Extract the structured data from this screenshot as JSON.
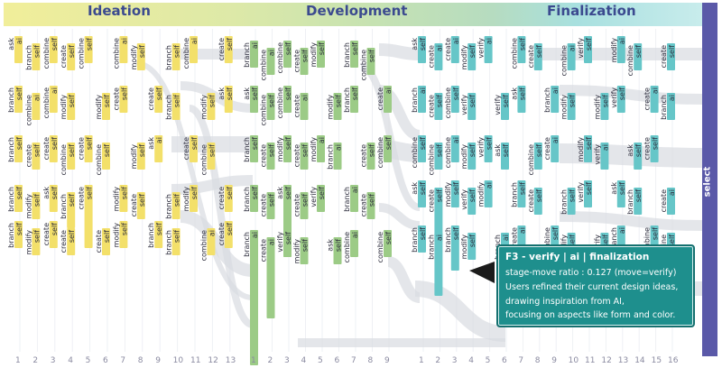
{
  "stages": [
    {
      "key": "ideation",
      "title": "Ideation",
      "color": "#f1e05a",
      "box": "#f3e06a",
      "band1": "#f1ee9a",
      "band2": "#dde9a8",
      "ticks": [
        "1",
        "2",
        "3",
        "4",
        "5",
        "6",
        "7",
        "8",
        "9",
        "10",
        "11",
        "12",
        "13"
      ]
    },
    {
      "key": "development",
      "title": "Development",
      "color": "#8ec27c",
      "box": "#9ccb86",
      "band1": "#c9e3b0",
      "band2": "#b6dcc0",
      "ticks": [
        "1",
        "2",
        "3",
        "4",
        "5",
        "6",
        "7",
        "8",
        "9"
      ]
    },
    {
      "key": "finalization",
      "title": "Finalization",
      "color": "#4dbcc0",
      "box": "#66c6c8",
      "band1": "#a8e0df",
      "band2": "#c8ecec",
      "ticks": [
        "1",
        "2",
        "3",
        "4",
        "5",
        "6",
        "7",
        "8",
        "9",
        "10",
        "11",
        "12",
        "13",
        "14",
        "15",
        "16"
      ]
    }
  ],
  "select_label": "select",
  "labels": {
    "ideation": [
      [
        "ask",
        "ai"
      ],
      [
        "branch",
        "self"
      ],
      [
        "branch",
        "self"
      ],
      [
        "branch",
        "self"
      ],
      [
        "branch",
        "self"
      ],
      [
        "branch",
        "self"
      ],
      [
        "combine",
        "ai"
      ],
      [
        "create",
        "self"
      ],
      [
        "modify",
        "self"
      ],
      [
        "modify",
        "self"
      ],
      [
        "combine",
        "self"
      ],
      [
        "combine",
        "ai"
      ],
      [
        "create",
        "self"
      ],
      [
        "ask",
        "self"
      ],
      [
        "create",
        "self"
      ],
      [
        "create",
        "self"
      ],
      [
        "modify",
        "self"
      ],
      [
        "combine",
        "self"
      ],
      [
        "branch",
        "self"
      ],
      [
        "create",
        "self"
      ],
      [
        "combine",
        "self"
      ],
      [
        "create",
        "self"
      ],
      [
        "create",
        "self"
      ],
      [
        "modify",
        "self"
      ],
      [
        "combine",
        "self"
      ],
      [
        "create",
        "self"
      ],
      [
        "combine",
        "ai"
      ],
      [
        "create",
        "self"
      ],
      [
        "modify",
        "self"
      ],
      [
        "modify",
        "self"
      ],
      [
        "modify",
        "self"
      ],
      [
        "modify",
        "self"
      ],
      [
        "create",
        "self"
      ],
      [
        "create",
        "self"
      ]
    ],
    "development": [
      [
        "branch",
        "ai"
      ],
      [
        "ask",
        "self"
      ],
      [
        "branch",
        "self"
      ],
      [
        "branch",
        "self"
      ],
      [
        "branch",
        "ai"
      ],
      [
        "combine",
        "ai"
      ],
      [
        "combine",
        "self"
      ],
      [
        "create",
        "self"
      ],
      [
        "create",
        "self"
      ],
      [
        "create",
        "ai"
      ],
      [
        "combine",
        "self"
      ],
      [
        "combine",
        "self"
      ],
      [
        "modify",
        "self"
      ],
      [
        "ask",
        "self"
      ],
      [
        "verify",
        "self"
      ],
      [
        "create",
        "self"
      ],
      [
        "create",
        "ai"
      ],
      [
        "create",
        "self"
      ],
      [
        "create",
        "self"
      ],
      [
        "modify",
        "self"
      ],
      [
        "modify",
        "self"
      ],
      [
        "modify",
        "ai"
      ],
      [
        "verify",
        "self"
      ],
      [
        "modify",
        "self"
      ]
    ],
    "finalization": [
      [
        "ask",
        "self"
      ],
      [
        "branch",
        "ai"
      ],
      [
        "combine",
        "self"
      ],
      [
        "ask",
        "self"
      ],
      [
        "branch",
        "self"
      ],
      [
        "create",
        "ai"
      ],
      [
        "create",
        "self"
      ],
      [
        "combine",
        "self"
      ],
      [
        "create",
        "self"
      ],
      [
        "branch",
        "ai"
      ],
      [
        "create",
        "ai"
      ],
      [
        "combine",
        "self"
      ],
      [
        "combine",
        "ai"
      ],
      [
        "modify",
        "self"
      ],
      [
        "branch",
        "self"
      ],
      [
        "modify",
        "self"
      ],
      [
        "verify",
        "self"
      ],
      [
        "modify",
        "self"
      ],
      [
        "verify",
        "self"
      ],
      [
        "modify",
        "self"
      ],
      [
        "verify",
        "ai"
      ],
      [
        "verify",
        "self"
      ],
      [
        "modify",
        "ai"
      ],
      [
        "verify",
        "self"
      ]
    ]
  },
  "tooltip": {
    "title": "F3 - verify | ai | finalization",
    "ratio": "stage-move ratio : 0.127 (move=verify)",
    "lines": [
      "Users refined their current design ideas,",
      "drawing inspiration from AI,",
      "focusing on aspects like form and color."
    ]
  }
}
